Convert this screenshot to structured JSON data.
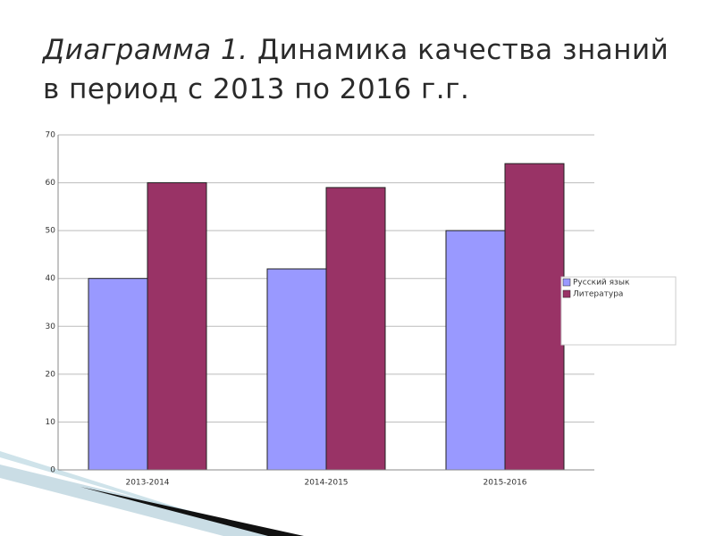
{
  "chart_data": {
    "type": "bar",
    "title_parts": [
      "Диаграмма 1.",
      "Динамика качества знаний в период с 2013 по 2016 г.г."
    ],
    "categories": [
      "2013-2014",
      "2014-2015",
      "2015-2016"
    ],
    "series": [
      {
        "name": "Русский язык",
        "color": "#9999ff",
        "values": [
          40,
          42,
          50
        ]
      },
      {
        "name": "Литература",
        "color": "#993366",
        "values": [
          60,
          59,
          64
        ]
      }
    ],
    "ylim": [
      0,
      70
    ],
    "yticks": [
      0,
      10,
      20,
      30,
      40,
      50,
      60,
      70
    ],
    "grid": true,
    "legend": "right"
  }
}
